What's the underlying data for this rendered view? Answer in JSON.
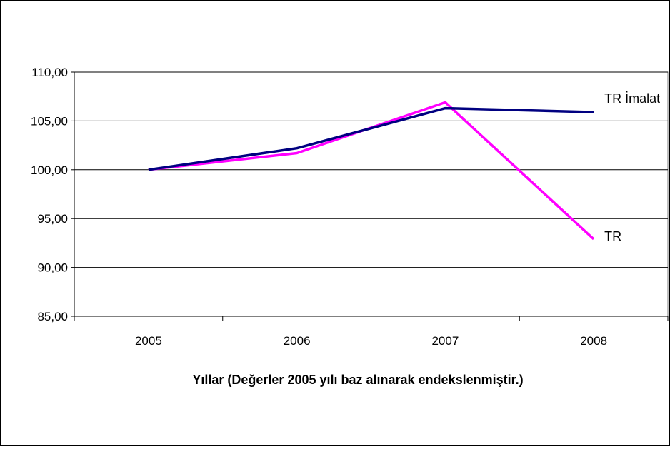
{
  "chart_data": {
    "type": "line",
    "title": "",
    "xlabel": "Yıllar (Değerler 2005 yılı baz alınarak endekslenmiştir.)",
    "ylabel": "",
    "categories": [
      "2005",
      "2006",
      "2007",
      "2008"
    ],
    "y_tick_labels": [
      "85,00",
      "90,00",
      "95,00",
      "100,00",
      "105,00",
      "110,00"
    ],
    "y_ticks": [
      85,
      90,
      95,
      100,
      105,
      110
    ],
    "ylim": [
      85,
      110
    ],
    "grid": true,
    "legend": "none (series labeled inline at line ends)",
    "series": [
      {
        "name": "TR İmalat",
        "color": "#000080",
        "values": [
          100.0,
          102.2,
          106.3,
          105.9
        ]
      },
      {
        "name": "TR",
        "color": "#FF00FF",
        "values": [
          100.0,
          101.7,
          106.9,
          92.9
        ]
      }
    ]
  }
}
